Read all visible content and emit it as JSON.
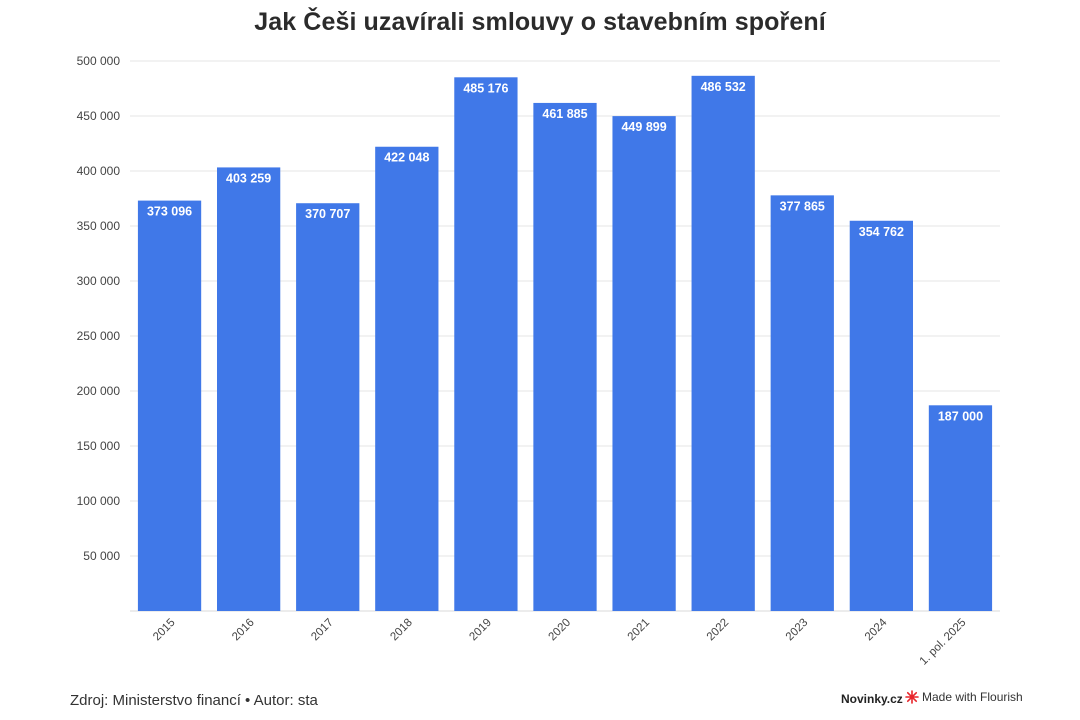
{
  "chart_data": {
    "type": "bar",
    "title": "Jak Češi uzavírali smlouvy o stavebním spoření",
    "xlabel": "",
    "ylabel": "",
    "categories": [
      "2015",
      "2016",
      "2017",
      "2018",
      "2019",
      "2020",
      "2021",
      "2022",
      "2023",
      "2024",
      "1. pol. 2025"
    ],
    "values": [
      373096,
      403259,
      370707,
      422048,
      485176,
      461885,
      449899,
      486532,
      377865,
      354762,
      187000
    ],
    "data_labels": [
      "373 096",
      "403 259",
      "370 707",
      "422 048",
      "485 176",
      "461 885",
      "449 899",
      "486 532",
      "377 865",
      "354 762",
      "187 000"
    ],
    "ylim": [
      0,
      500000
    ],
    "yticks": [
      50000,
      100000,
      150000,
      200000,
      250000,
      300000,
      350000,
      400000,
      450000,
      500000
    ],
    "ytick_labels": [
      "50 000",
      "100 000",
      "150 000",
      "200 000",
      "250 000",
      "300 000",
      "350 000",
      "400 000",
      "450 000",
      "500 000"
    ],
    "grid": true,
    "bar_color": "#4078e8",
    "grid_color": "#e6e6e6"
  },
  "footer": {
    "source": "Zdroj: Ministerstvo financí • Autor: sta",
    "brand": "Novinky.cz",
    "flourish": "Made with Flourish",
    "flourish_icon": "flourish-star-icon",
    "flourish_icon_color": "#e8262c"
  }
}
